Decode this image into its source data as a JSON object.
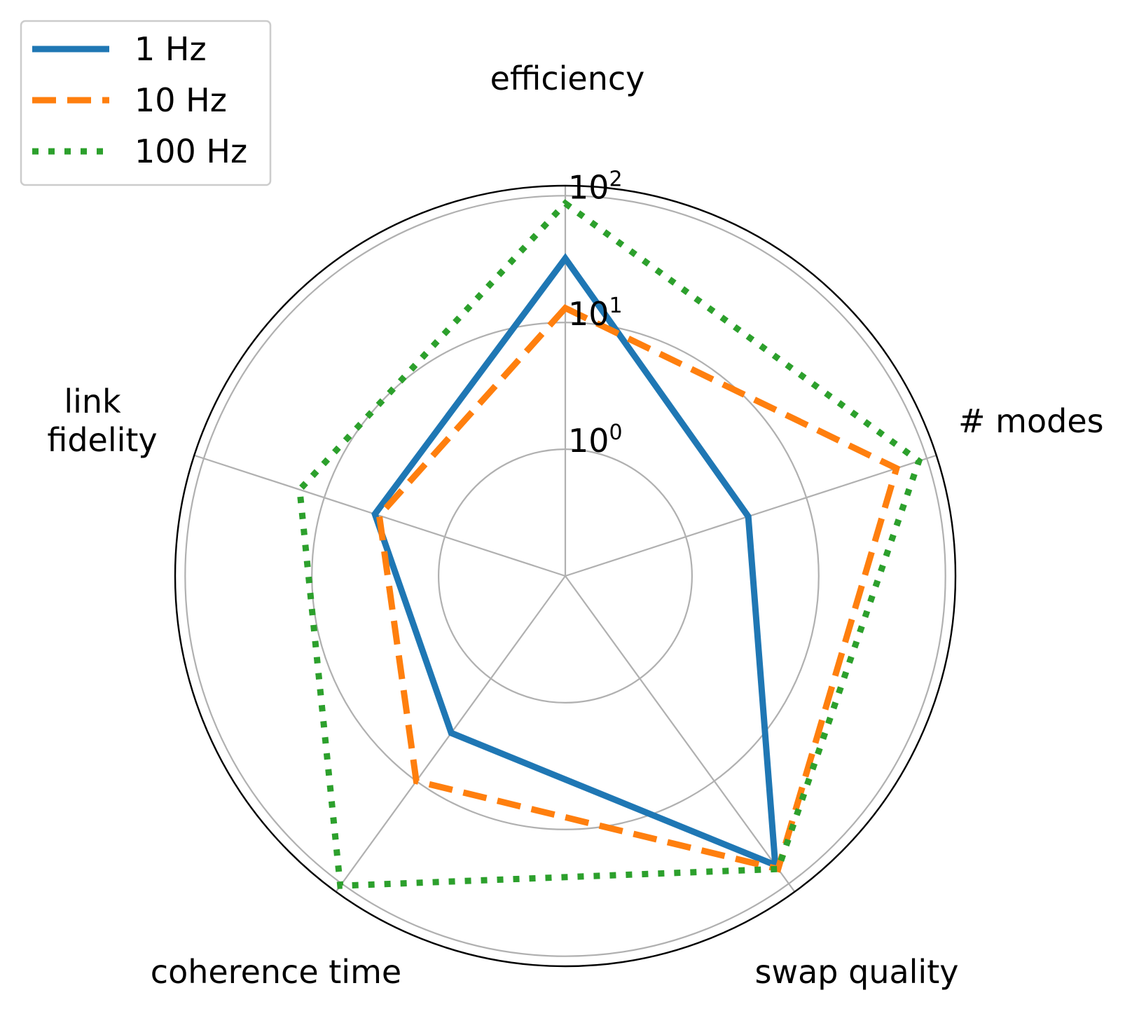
{
  "chart_data": {
    "type": "radar",
    "title": "",
    "scale": "log",
    "rlim": [
      0.1,
      120
    ],
    "r_ticks": [
      {
        "value": 1,
        "base": "10",
        "exp": "0"
      },
      {
        "value": 10,
        "base": "10",
        "exp": "1"
      },
      {
        "value": 100,
        "base": "10",
        "exp": "2"
      }
    ],
    "axes": [
      {
        "label_lines": [
          "efficiency"
        ]
      },
      {
        "label_lines": [
          "# modes"
        ]
      },
      {
        "label_lines": [
          "swap quality"
        ]
      },
      {
        "label_lines": [
          "coherence time"
        ]
      },
      {
        "label_lines": [
          "link",
          "fidelity"
        ]
      }
    ],
    "grid": true,
    "legend_position": "top-left",
    "series": [
      {
        "name": "1 Hz",
        "color": "#1f77b4",
        "style": "solid",
        "values": [
          32,
          3.3,
          66,
          3.4,
          3.8
        ]
      },
      {
        "name": "10 Hz",
        "color": "#ff7f0e",
        "style": "dashed",
        "values": [
          13,
          56,
          72,
          10,
          3.5
        ]
      },
      {
        "name": "100 Hz",
        "color": "#2ca02c",
        "style": "dotted",
        "values": [
          87,
          86,
          72,
          105,
          16
        ]
      }
    ]
  }
}
